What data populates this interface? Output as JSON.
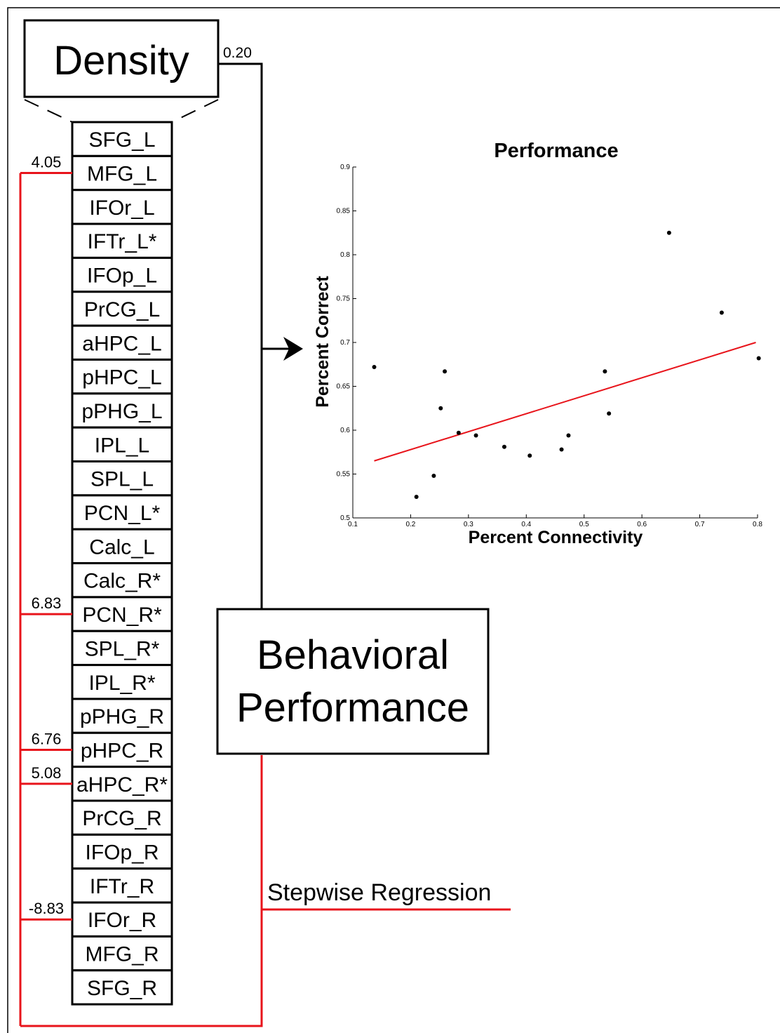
{
  "density": {
    "title": "Density",
    "weight": "0.20"
  },
  "regions": [
    {
      "name": "SFG_L",
      "highlight": false,
      "coef": ""
    },
    {
      "name": "MFG_L",
      "highlight": true,
      "coef": "4.05"
    },
    {
      "name": "IFOr_L",
      "highlight": false,
      "coef": ""
    },
    {
      "name": "IFTr_L*",
      "highlight": false,
      "coef": ""
    },
    {
      "name": "IFOp_L",
      "highlight": false,
      "coef": ""
    },
    {
      "name": "PrCG_L",
      "highlight": false,
      "coef": ""
    },
    {
      "name": "aHPC_L",
      "highlight": false,
      "coef": ""
    },
    {
      "name": "pHPC_L",
      "highlight": false,
      "coef": ""
    },
    {
      "name": "pPHG_L",
      "highlight": false,
      "coef": ""
    },
    {
      "name": "IPL_L",
      "highlight": false,
      "coef": ""
    },
    {
      "name": "SPL_L",
      "highlight": false,
      "coef": ""
    },
    {
      "name": "PCN_L*",
      "highlight": false,
      "coef": ""
    },
    {
      "name": "Calc_L",
      "highlight": false,
      "coef": ""
    },
    {
      "name": "Calc_R*",
      "highlight": false,
      "coef": ""
    },
    {
      "name": "PCN_R*",
      "highlight": true,
      "coef": "6.83"
    },
    {
      "name": "SPL_R*",
      "highlight": false,
      "coef": ""
    },
    {
      "name": "IPL_R*",
      "highlight": false,
      "coef": ""
    },
    {
      "name": "pPHG_R",
      "highlight": false,
      "coef": ""
    },
    {
      "name": "pHPC_R",
      "highlight": true,
      "coef": "6.76"
    },
    {
      "name": "aHPC_R*",
      "highlight": true,
      "coef": "5.08"
    },
    {
      "name": "PrCG_R",
      "highlight": false,
      "coef": ""
    },
    {
      "name": "IFOp_R",
      "highlight": false,
      "coef": ""
    },
    {
      "name": "IFTr_R",
      "highlight": false,
      "coef": ""
    },
    {
      "name": "IFOr_R",
      "highlight": true,
      "coef": "-8.83"
    },
    {
      "name": "MFG_R",
      "highlight": false,
      "coef": ""
    },
    {
      "name": "SFG_R",
      "highlight": false,
      "coef": ""
    }
  ],
  "behavior": {
    "line1": "Behavioral",
    "line2": "Performance"
  },
  "regression": {
    "label": "Stepwise Regression"
  },
  "colors": {
    "highlight": "#e8141b",
    "ink": "#000000",
    "fit_line": "#e8141b"
  },
  "chart_data": {
    "type": "scatter",
    "title": "Performance",
    "xlabel": "Percent Connectivity",
    "ylabel": "Percent Correct",
    "xlim": [
      0.1,
      0.8
    ],
    "ylim": [
      0.5,
      0.9
    ],
    "xticks": [
      "0.1",
      "0.2",
      "0.3",
      "0.4",
      "0.5",
      "0.6",
      "0.7",
      "0.8"
    ],
    "yticks": [
      "0.5",
      "0.55",
      "0.6",
      "0.65",
      "0.7",
      "0.75",
      "0.8",
      "0.85",
      "0.9"
    ],
    "points": [
      [
        0.137,
        0.672
      ],
      [
        0.21,
        0.524
      ],
      [
        0.24,
        0.548
      ],
      [
        0.252,
        0.625
      ],
      [
        0.259,
        0.667
      ],
      [
        0.283,
        0.597
      ],
      [
        0.313,
        0.594
      ],
      [
        0.362,
        0.581
      ],
      [
        0.406,
        0.571
      ],
      [
        0.461,
        0.578
      ],
      [
        0.473,
        0.594
      ],
      [
        0.536,
        0.667
      ],
      [
        0.543,
        0.619
      ],
      [
        0.647,
        0.825
      ],
      [
        0.738,
        0.734
      ],
      [
        0.802,
        0.682
      ]
    ],
    "fit_line": [
      [
        0.137,
        0.565
      ],
      [
        0.797,
        0.7
      ]
    ],
    "grid": false
  }
}
